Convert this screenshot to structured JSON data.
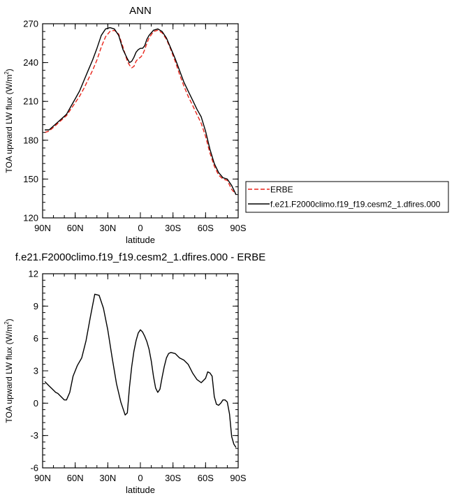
{
  "chart_data": [
    {
      "type": "line",
      "title": "ANN",
      "xlabel": "latitude",
      "ylabel": "TOA upward LW flux (W/m",
      "ylabel_sup": "2",
      "ylabel_end": ")",
      "xlim": [
        90,
        -90
      ],
      "ylim": [
        120,
        270
      ],
      "xticks": [
        90,
        60,
        30,
        0,
        -30,
        -60,
        -90
      ],
      "xtick_labels": [
        "90N",
        "60N",
        "30N",
        "0",
        "30S",
        "60S",
        "90S"
      ],
      "yticks": [
        120,
        150,
        180,
        210,
        240,
        270
      ],
      "ytick_labels": [
        "120",
        "150",
        "180",
        "210",
        "240",
        "270"
      ],
      "legend_position": "right",
      "series": [
        {
          "name": "ERBE",
          "color": "#e8241a",
          "dash": "dashed",
          "x": [
            88,
            84,
            80,
            76,
            72,
            68,
            64,
            60,
            56,
            52,
            48,
            44,
            40,
            36,
            32,
            28,
            24,
            20,
            16,
            12,
            10,
            8,
            6,
            4,
            2,
            0,
            -2,
            -4,
            -6,
            -8,
            -12,
            -16,
            -20,
            -24,
            -28,
            -32,
            -36,
            -40,
            -44,
            -48,
            -52,
            -56,
            -60,
            -64,
            -68,
            -72,
            -76,
            -80,
            -84,
            -88
          ],
          "y": [
            186,
            187,
            190,
            193,
            196,
            199,
            204,
            209,
            214,
            220,
            227,
            234,
            242,
            252,
            260,
            264,
            265,
            262,
            252,
            241,
            238,
            236,
            237,
            241,
            243,
            244,
            246,
            250,
            255,
            259,
            264,
            265,
            263,
            258,
            250,
            241,
            231,
            222,
            214,
            207,
            200,
            193,
            183,
            170,
            160,
            153,
            150,
            149,
            142,
            138
          ]
        },
        {
          "name": "f.e21.F2000climo.f19_f19.cesm2_1.dfires.000",
          "color": "#000000",
          "dash": "solid",
          "x": [
            88,
            84,
            80,
            76,
            72,
            68,
            64,
            60,
            56,
            52,
            48,
            44,
            40,
            36,
            32,
            28,
            24,
            20,
            16,
            12,
            10,
            8,
            6,
            4,
            2,
            0,
            -2,
            -4,
            -6,
            -8,
            -12,
            -16,
            -20,
            -24,
            -28,
            -32,
            -36,
            -40,
            -44,
            -48,
            -52,
            -56,
            -60,
            -64,
            -68,
            -72,
            -76,
            -80,
            -84,
            -88
          ],
          "y": [
            188,
            188,
            191,
            194,
            197,
            200,
            206,
            212,
            218,
            226,
            234,
            242,
            251,
            261,
            266,
            267,
            266,
            261,
            250,
            243,
            240,
            241,
            244,
            248,
            250,
            251,
            251,
            253,
            258,
            261,
            265,
            266,
            264,
            259,
            251,
            243,
            234,
            225,
            218,
            211,
            204,
            198,
            187,
            173,
            162,
            155,
            151,
            150,
            145,
            138
          ]
        }
      ]
    },
    {
      "type": "line",
      "title": "f.e21.F2000climo.f19_f19.cesm2_1.dfires.000 - ERBE",
      "xlabel": "latitude",
      "ylabel": "TOA upward LW flux (W/m",
      "ylabel_sup": "2",
      "ylabel_end": ")",
      "xlim": [
        90,
        -90
      ],
      "ylim": [
        -6,
        12
      ],
      "xticks": [
        90,
        60,
        30,
        0,
        -30,
        -60,
        -90
      ],
      "xtick_labels": [
        "90N",
        "60N",
        "30N",
        "0",
        "30S",
        "60S",
        "90S"
      ],
      "yticks": [
        -6,
        -3,
        0,
        3,
        6,
        9,
        12
      ],
      "ytick_labels": [
        "-6",
        "-3",
        "0",
        "3",
        "6",
        "9",
        "12"
      ],
      "series": [
        {
          "color": "#000000",
          "dash": "solid",
          "x": [
            88,
            84,
            80,
            78,
            76,
            74,
            72,
            70,
            68,
            65,
            62,
            58,
            54,
            50,
            46,
            42,
            38,
            34,
            30,
            26,
            22,
            18,
            14,
            12,
            10,
            8,
            6,
            4,
            2,
            0,
            -2,
            -4,
            -6,
            -8,
            -10,
            -12,
            -14,
            -16,
            -18,
            -20,
            -22,
            -24,
            -26,
            -28,
            -32,
            -36,
            -40,
            -44,
            -48,
            -52,
            -56,
            -60,
            -62,
            -64,
            -66,
            -68,
            -70,
            -72,
            -74,
            -76,
            -78,
            -80,
            -82,
            -84,
            -86,
            -88
          ],
          "y": [
            2.0,
            1.6,
            1.2,
            1.0,
            0.9,
            0.7,
            0.5,
            0.3,
            0.3,
            1.0,
            2.5,
            3.5,
            4.2,
            5.8,
            8.0,
            10.1,
            10.0,
            8.8,
            6.8,
            4.2,
            1.8,
            0.1,
            -1.1,
            -0.9,
            1.5,
            3.4,
            4.8,
            5.8,
            6.5,
            6.8,
            6.6,
            6.2,
            5.7,
            5.0,
            3.9,
            2.5,
            1.4,
            1.0,
            1.3,
            2.4,
            3.4,
            4.2,
            4.6,
            4.7,
            4.6,
            4.2,
            4.0,
            3.6,
            2.8,
            2.2,
            1.9,
            2.3,
            2.9,
            2.8,
            2.5,
            0.6,
            -0.1,
            -0.2,
            0.0,
            0.3,
            0.3,
            0.1,
            -1.0,
            -3.1,
            -3.8,
            -4.1
          ]
        }
      ]
    }
  ]
}
